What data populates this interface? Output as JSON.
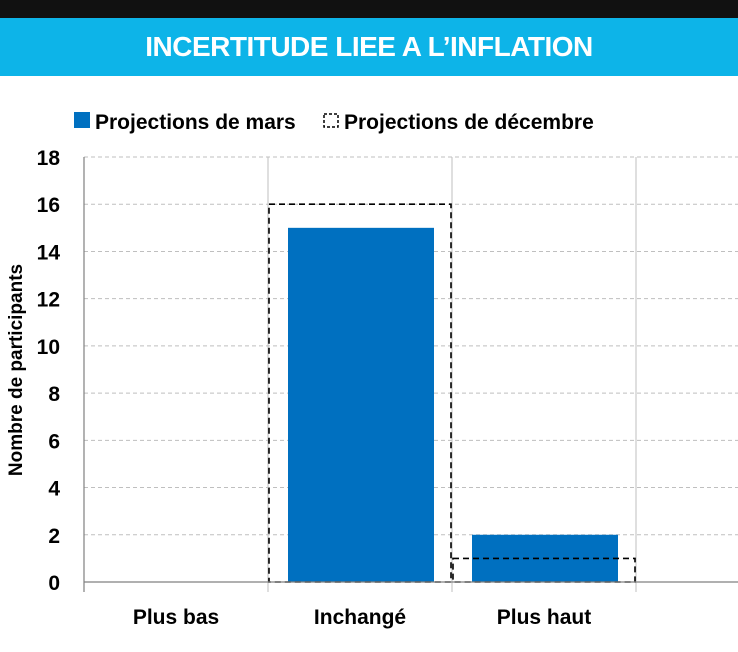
{
  "colors": {
    "banner": "#0db4e8",
    "bar_mars": "#0070c0",
    "grid": "#bfbfbf",
    "axis": "#808080"
  },
  "chart_data": {
    "type": "bar",
    "title": "INCERTITUDE  LIEE A L’INFLATION",
    "ylabel": "Nombre de participants",
    "xlabel": "",
    "categories": [
      "Plus bas",
      "Inchangé",
      "Plus haut"
    ],
    "series": [
      {
        "name": "Projections de mars",
        "values": [
          0,
          15,
          2
        ],
        "style": "solid"
      },
      {
        "name": "Projections de décembre",
        "values": [
          0,
          16,
          1
        ],
        "style": "dashed-outline"
      }
    ],
    "ylim": [
      0,
      18
    ],
    "yticks": [
      "0",
      "2",
      "4",
      "6",
      "8",
      "10",
      "12",
      "14",
      "16",
      "18"
    ],
    "grid": true,
    "legend_position": "top-left"
  }
}
